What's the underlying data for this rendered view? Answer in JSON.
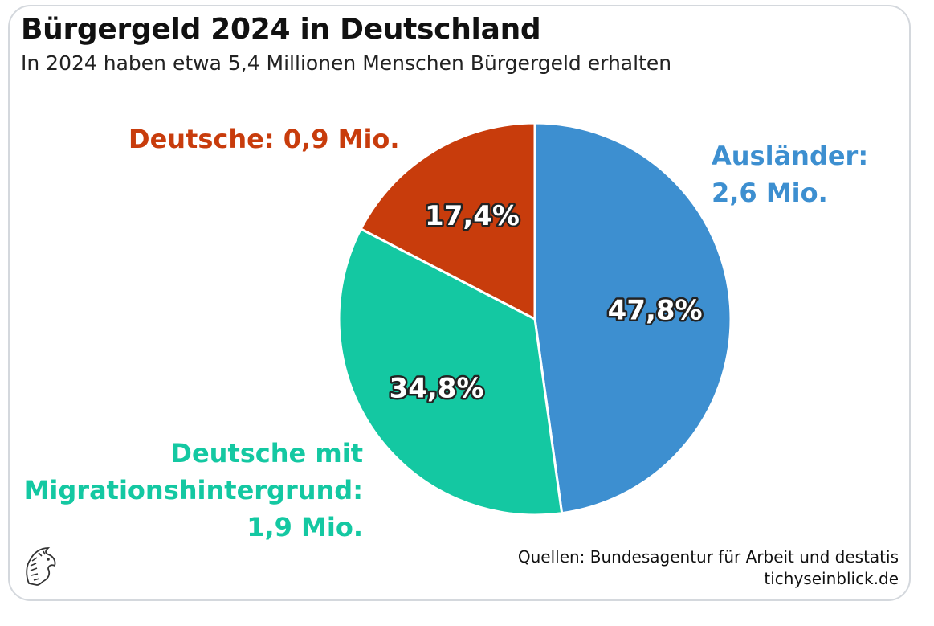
{
  "title": "Bürgergeld 2024 in Deutschland",
  "subtitle": "In 2024 haben etwa 5,4 Millionen Menschen Bürgergeld erhalten",
  "chart_data": {
    "type": "pie",
    "slices": [
      {
        "name": "Ausländer",
        "value": 47.8,
        "label": "47,8%",
        "color": "#3d8fd0"
      },
      {
        "name": "Deutsche mit Migrationshintergrund",
        "value": 34.8,
        "label": "34,8%",
        "color": "#14c8a2"
      },
      {
        "name": "Deutsche",
        "value": 17.4,
        "label": "17,4%",
        "color": "#c83c0c"
      }
    ]
  },
  "labels": {
    "deutsche": "Deutsche: 0,9 Mio.",
    "auslaender_line1": "Ausländer:",
    "auslaender_line2": "2,6 Mio.",
    "migration_line1": "Deutsche mit",
    "migration_line2": "Migrationshintergrund:",
    "migration_line3": "1,9 Mio."
  },
  "source": {
    "line1": "Quellen: Bundesagentur für Arbeit und destatis",
    "line2": "tichyseinblick.de"
  },
  "logo_icon": "eagle-head-logo-icon"
}
